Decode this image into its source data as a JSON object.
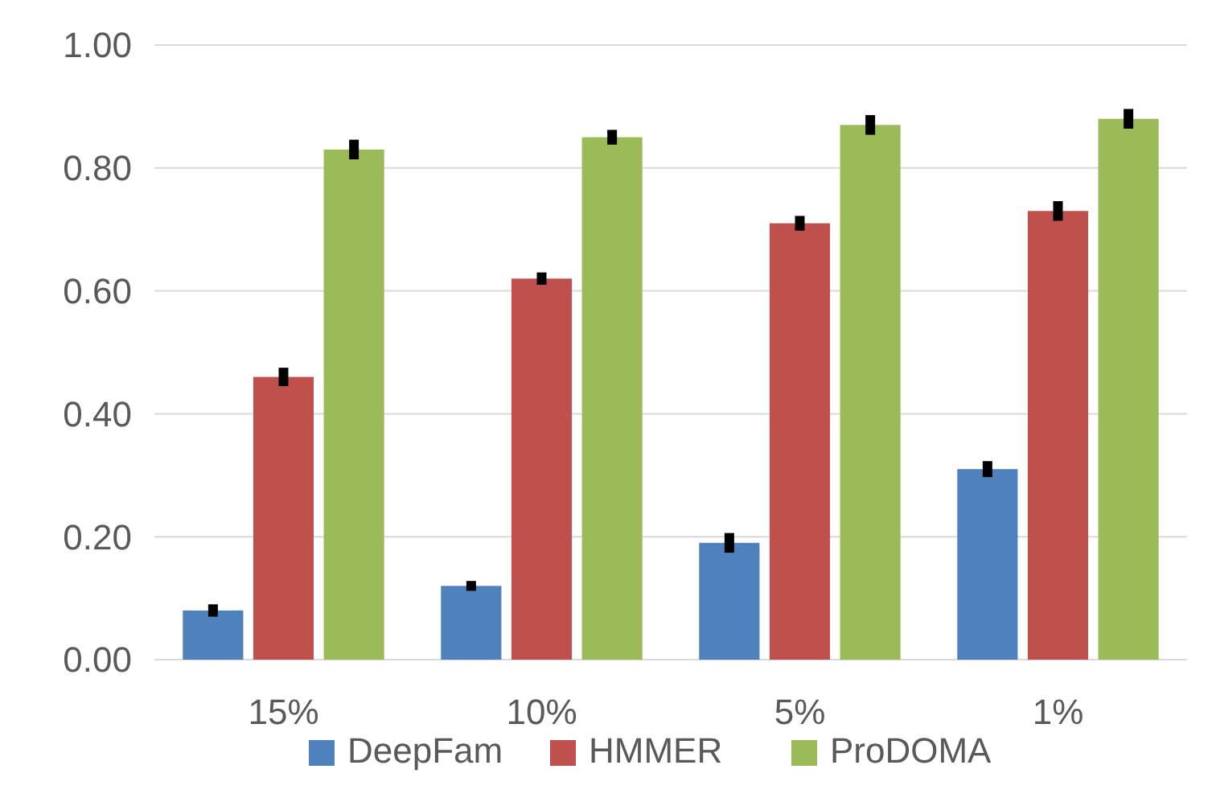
{
  "chart_data": {
    "type": "bar",
    "categories": [
      "15%",
      "10%",
      "5%",
      "1%"
    ],
    "series": [
      {
        "name": "DeepFam",
        "color": "#4f81bd",
        "values": [
          0.08,
          0.12,
          0.19,
          0.31
        ],
        "errors": [
          0.01,
          0.008,
          0.016,
          0.013
        ]
      },
      {
        "name": "HMMER",
        "color": "#c0504d",
        "values": [
          0.46,
          0.62,
          0.71,
          0.73
        ],
        "errors": [
          0.015,
          0.01,
          0.012,
          0.016
        ]
      },
      {
        "name": "ProDOMA",
        "color": "#9bbb59",
        "values": [
          0.83,
          0.85,
          0.87,
          0.88
        ],
        "errors": [
          0.016,
          0.012,
          0.016,
          0.016
        ]
      }
    ],
    "ylim": [
      0,
      1
    ],
    "yticks": [
      {
        "value": 0,
        "label": "0.00"
      },
      {
        "value": 0.2,
        "label": "0.20"
      },
      {
        "value": 0.4,
        "label": "0.40"
      },
      {
        "value": 0.6,
        "label": "0.60"
      },
      {
        "value": 0.8,
        "label": "0.80"
      },
      {
        "value": 1,
        "label": "1.00"
      }
    ],
    "grid": "y",
    "legend": "bottom"
  }
}
